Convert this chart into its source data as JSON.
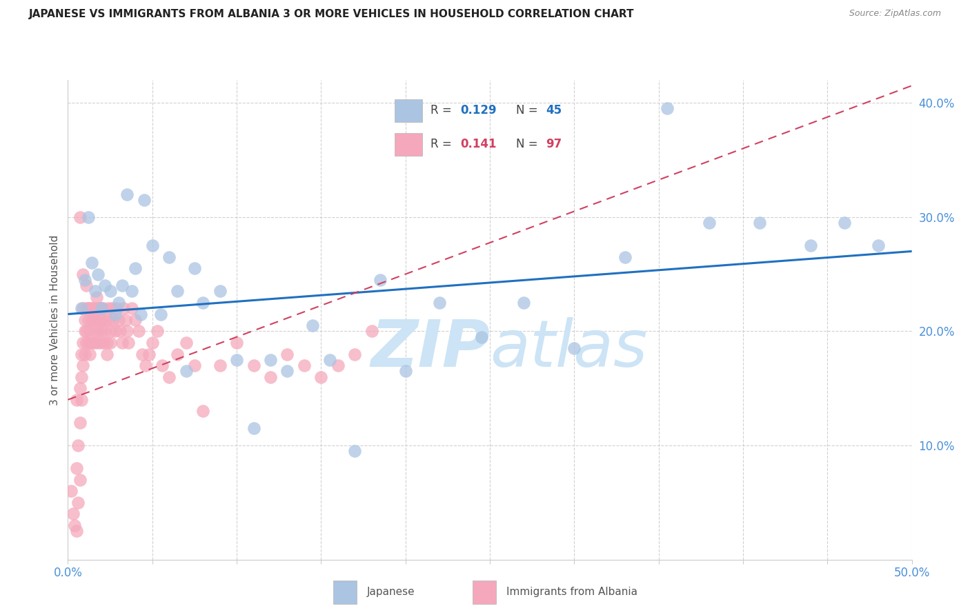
{
  "title": "JAPANESE VS IMMIGRANTS FROM ALBANIA 3 OR MORE VEHICLES IN HOUSEHOLD CORRELATION CHART",
  "source": "Source: ZipAtlas.com",
  "ylabel": "3 or more Vehicles in Household",
  "xlim": [
    0.0,
    0.5
  ],
  "ylim": [
    0.0,
    0.42
  ],
  "xtick_labels": [
    "0.0%",
    "",
    "",
    "",
    "",
    "",
    "",
    "",
    "",
    "",
    "50.0%"
  ],
  "ytick_labels": [
    "",
    "10.0%",
    "20.0%",
    "30.0%",
    "40.0%"
  ],
  "legend_r1": "0.129",
  "legend_n1": "45",
  "legend_r2": "0.141",
  "legend_n2": "97",
  "legend_label1": "Japanese",
  "legend_label2": "Immigrants from Albania",
  "color_blue": "#aac4e2",
  "color_pink": "#f5a8bc",
  "line_color_blue": "#2070c0",
  "line_color_pink": "#d04060",
  "title_color": "#222222",
  "source_color": "#888888",
  "tick_color": "#4a90d9",
  "ylabel_color": "#555555",
  "grid_color": "#cccccc",
  "watermark_color": "#cce4f5"
}
